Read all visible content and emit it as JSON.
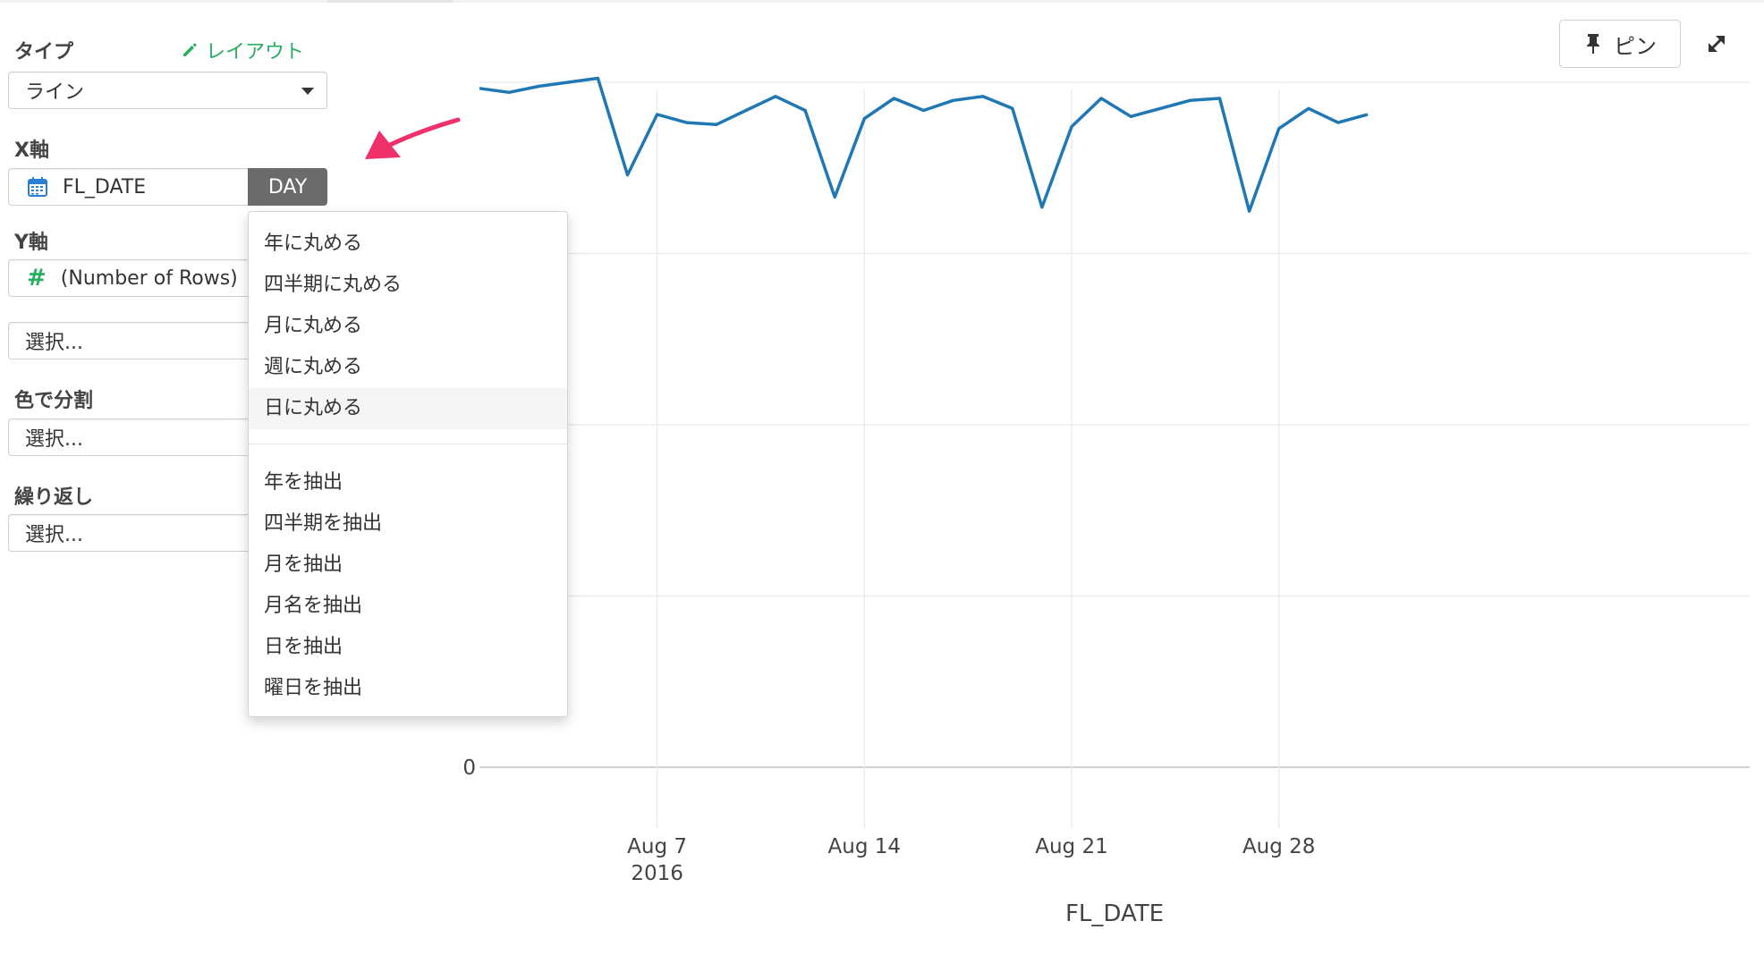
{
  "settings": {
    "type_label": "タイプ",
    "layout_link": "レイアウト",
    "type_value": "ライン",
    "x_label": "X軸",
    "x_field": "FL_DATE",
    "x_unit": "DAY",
    "y_label": "Y軸",
    "y_field": "(Number of Rows)",
    "y_extra_placeholder": "選択...",
    "color_label": "色で分割",
    "color_placeholder": "選択...",
    "repeat_label": "繰り返し",
    "repeat_placeholder": "選択..."
  },
  "menu": {
    "round_items": [
      "年に丸める",
      "四半期に丸める",
      "月に丸める",
      "週に丸める",
      "日に丸める"
    ],
    "extract_items": [
      "年を抽出",
      "四半期を抽出",
      "月を抽出",
      "月名を抽出",
      "日を抽出",
      "曜日を抽出"
    ],
    "highlighted": "日に丸める"
  },
  "toolbar": {
    "pin_label": "ピン"
  },
  "icons": {
    "pencil": "pencil-icon",
    "calendar": "calendar-icon",
    "hash": "hash-icon",
    "pin": "pin-icon",
    "expand": "expand-icon",
    "arrow": "pointer-arrow-icon"
  },
  "colors": {
    "line": "#1f77b4",
    "accent_green": "#27ae60",
    "arrow": "#f0306a",
    "day_button": "#6b6b6b"
  },
  "chart_data": {
    "type": "line",
    "xlabel": "FL_DATE",
    "x_ticks": [
      "Aug 7",
      "Aug 14",
      "Aug 21",
      "Aug 28"
    ],
    "x_tick_year": "2016",
    "y_ticks": [
      "0"
    ],
    "ylim": [
      0,
      34
    ],
    "grid": true,
    "series": [
      {
        "x": [
          "2016-08-01",
          "2016-08-02",
          "2016-08-03",
          "2016-08-04",
          "2016-08-05",
          "2016-08-06",
          "2016-08-07",
          "2016-08-08",
          "2016-08-09",
          "2016-08-10",
          "2016-08-11",
          "2016-08-12",
          "2016-08-13",
          "2016-08-14",
          "2016-08-15",
          "2016-08-16",
          "2016-08-17",
          "2016-08-18",
          "2016-08-19",
          "2016-08-20",
          "2016-08-21",
          "2016-08-22",
          "2016-08-23",
          "2016-08-24",
          "2016-08-25",
          "2016-08-26",
          "2016-08-27",
          "2016-08-28",
          "2016-08-29",
          "2016-08-30",
          "2016-08-31"
        ],
        "values": [
          33.7,
          33.5,
          33.8,
          34.0,
          34.2,
          29.4,
          32.4,
          32.0,
          31.9,
          32.6,
          33.3,
          32.6,
          28.3,
          32.2,
          33.2,
          32.6,
          33.1,
          33.3,
          32.7,
          27.8,
          31.8,
          33.2,
          32.3,
          32.7,
          33.1,
          33.2,
          27.6,
          31.7,
          32.7,
          32.0,
          32.4
        ]
      }
    ]
  }
}
